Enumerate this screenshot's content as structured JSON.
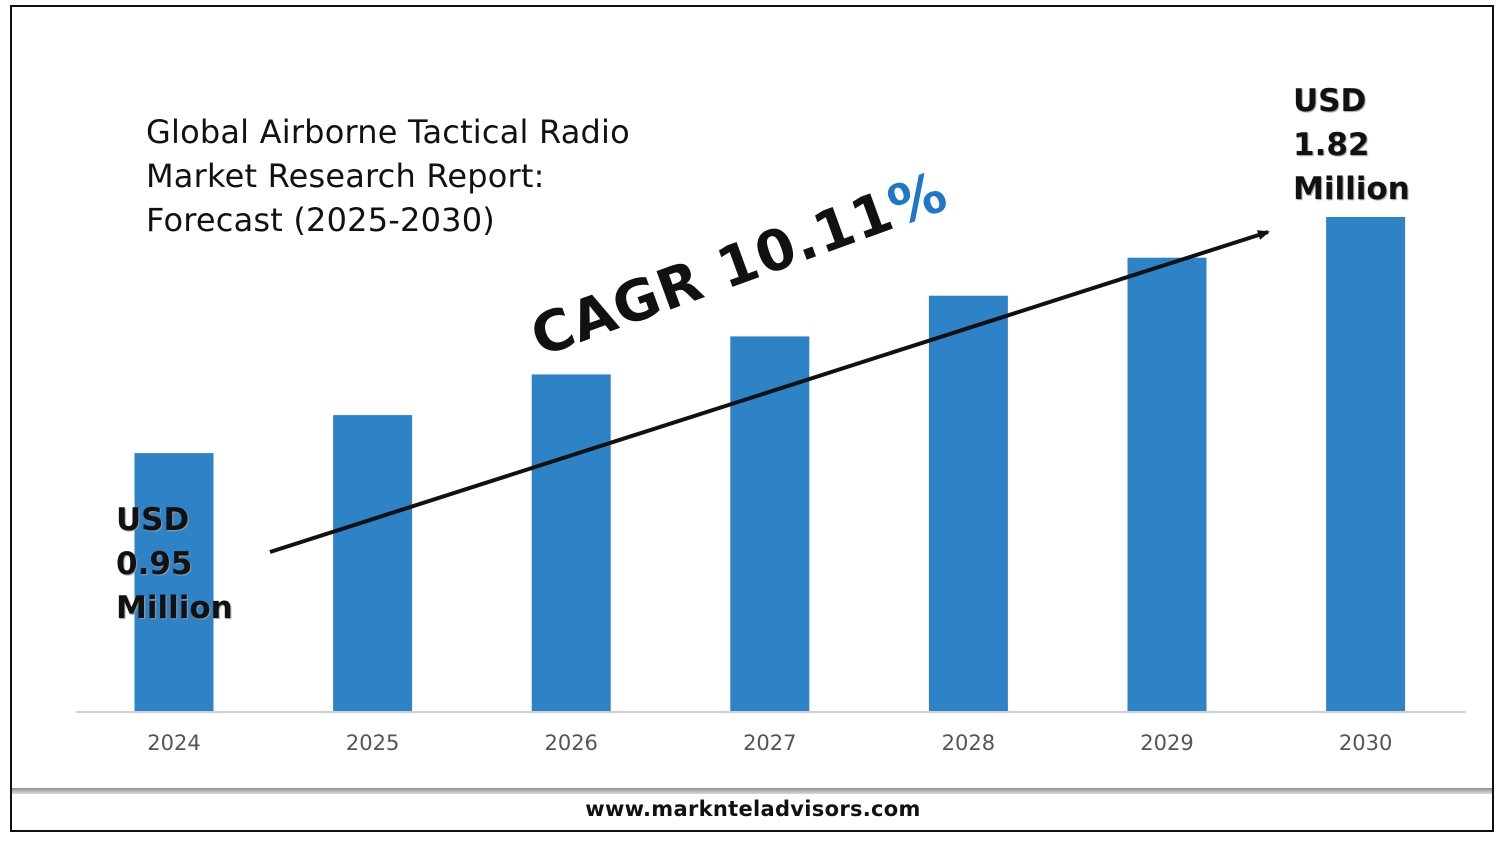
{
  "title": {
    "lines": [
      "Global Airborne Tactical Radio",
      "Market Research Report:",
      "Forecast (2025-2030)"
    ]
  },
  "start_label": {
    "currency": "USD",
    "value": "0.95",
    "unit": "Million"
  },
  "end_label": {
    "currency": "USD",
    "value": "1.82",
    "unit": "Million"
  },
  "cagr": {
    "prefix": "CAGR 10.11",
    "symbol": "%"
  },
  "footer": {
    "url": "www.marknteladvisors.com"
  },
  "colors": {
    "bar": "#2e83c6",
    "accent": "#1f77c8",
    "axis": "#d0d0d0"
  },
  "chart_data": {
    "type": "bar",
    "categories": [
      "2024",
      "2025",
      "2026",
      "2027",
      "2028",
      "2029",
      "2030"
    ],
    "values": [
      0.95,
      1.09,
      1.24,
      1.38,
      1.53,
      1.67,
      1.82
    ],
    "ylim": [
      0,
      1.82
    ],
    "grid": false,
    "legend": "none",
    "annotations": [
      "USD 0.95 Million",
      "USD 1.82 Million",
      "CAGR 10.11%"
    ]
  }
}
